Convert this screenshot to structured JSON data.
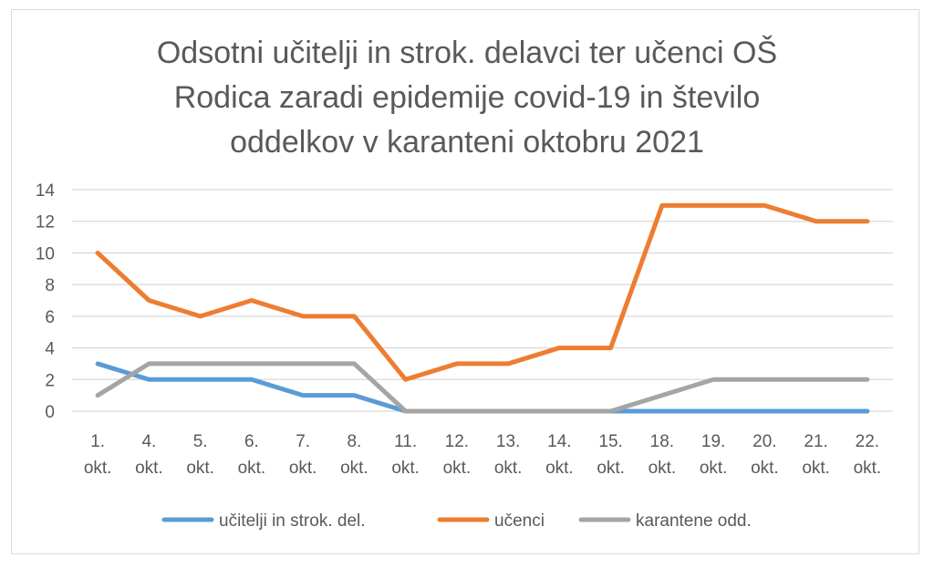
{
  "chart_data": {
    "type": "line",
    "title_lines": [
      "Odsotni učitelji in strok. delavci ter učenci OŠ",
      "Rodica zaradi epidemije covid-19 in število",
      "oddelkov v karanteni oktobru 2021"
    ],
    "categories": [
      [
        "1.",
        "okt."
      ],
      [
        "4.",
        "okt."
      ],
      [
        "5.",
        "okt."
      ],
      [
        "6.",
        "okt."
      ],
      [
        "7.",
        "okt."
      ],
      [
        "8.",
        "okt."
      ],
      [
        "11.",
        "okt."
      ],
      [
        "12.",
        "okt."
      ],
      [
        "13.",
        "okt."
      ],
      [
        "14.",
        "okt."
      ],
      [
        "15.",
        "okt."
      ],
      [
        "18.",
        "okt."
      ],
      [
        "19.",
        "okt."
      ],
      [
        "20.",
        "okt."
      ],
      [
        "21.",
        "okt."
      ],
      [
        "22.",
        "okt."
      ]
    ],
    "ylim": [
      0,
      14
    ],
    "yticks": [
      "0",
      "2",
      "4",
      "6",
      "8",
      "10",
      "12",
      "14"
    ],
    "grid": true,
    "legend_position": "bottom",
    "series": [
      {
        "name": "učitelji in strok. del.",
        "color": "#5b9bd5",
        "values": [
          3,
          2,
          2,
          2,
          1,
          1,
          0,
          0,
          0,
          0,
          0,
          0,
          0,
          0,
          0,
          0
        ]
      },
      {
        "name": "učenci",
        "color": "#ed7d31",
        "values": [
          10,
          7,
          6,
          7,
          6,
          6,
          2,
          3,
          3,
          4,
          4,
          13,
          13,
          13,
          12,
          12
        ]
      },
      {
        "name": "karantene odd.",
        "color": "#a5a5a5",
        "values": [
          1,
          3,
          3,
          3,
          3,
          3,
          0,
          0,
          0,
          0,
          0,
          1,
          2,
          2,
          2,
          2
        ]
      }
    ]
  }
}
